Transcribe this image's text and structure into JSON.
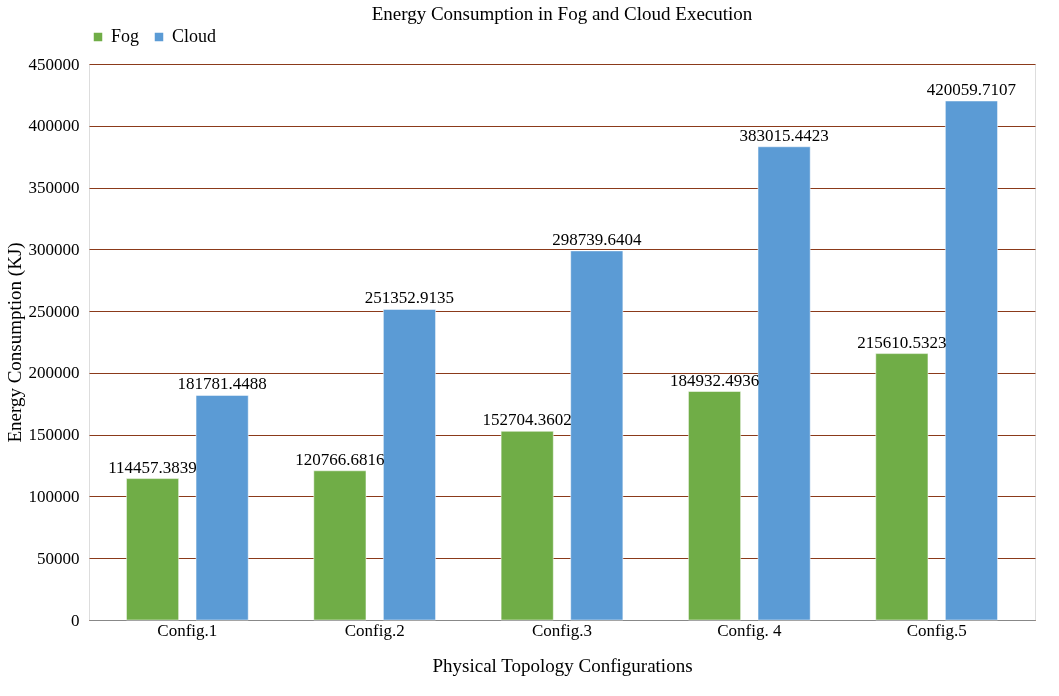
{
  "chart_data": {
    "type": "bar",
    "title": "Energy Consumption in Fog and Cloud Execution",
    "xlabel": "Physical Topology Configurations",
    "ylabel": "Energy Consumption (KJ)",
    "categories": [
      "Config.1",
      "Config.2",
      "Config.3",
      "Config. 4",
      "Config.5"
    ],
    "series": [
      {
        "name": "Fog",
        "color": "#70ad47",
        "values": [
          114457.3839,
          120766.6816,
          152704.3602,
          184932.4936,
          215610.5323
        ]
      },
      {
        "name": "Cloud",
        "color": "#5b9bd5",
        "values": [
          181781.4488,
          251352.9135,
          298739.6404,
          383015.4423,
          420059.7107
        ]
      }
    ],
    "ylim": [
      0,
      450000
    ],
    "yticks": [
      0,
      50000,
      100000,
      150000,
      200000,
      250000,
      300000,
      350000,
      400000,
      450000
    ],
    "grid": "y",
    "legend": "top",
    "data_labels": true
  }
}
